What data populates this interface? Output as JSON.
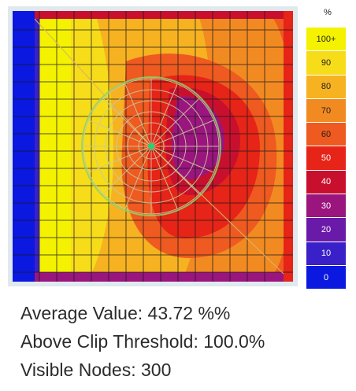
{
  "legend": {
    "unit": "%",
    "items": [
      {
        "label": "100+",
        "color": "#f4f200",
        "text_color": "#222222"
      },
      {
        "label": "90",
        "color": "#f7dc1a",
        "text_color": "#222222"
      },
      {
        "label": "80",
        "color": "#f6b221",
        "text_color": "#222222"
      },
      {
        "label": "70",
        "color": "#f28a22",
        "text_color": "#222222"
      },
      {
        "label": "60",
        "color": "#ee5a1f",
        "text_color": "#222222"
      },
      {
        "label": "50",
        "color": "#e62417",
        "text_color": "#ffffff"
      },
      {
        "label": "40",
        "color": "#c8102e",
        "text_color": "#ffffff"
      },
      {
        "label": "30",
        "color": "#9a157e",
        "text_color": "#ffffff"
      },
      {
        "label": "20",
        "color": "#6a1aa8",
        "text_color": "#ffffff"
      },
      {
        "label": "10",
        "color": "#3a20c8",
        "text_color": "#ffffff"
      },
      {
        "label": "0",
        "color": "#0a18e0",
        "text_color": "#ffffff"
      }
    ]
  },
  "stats": {
    "average_value": "Average Value: 43.72 %%",
    "above_clip_threshold": "Above Clip Threshold: 100.0%",
    "visible_nodes": "Visible Nodes: 300"
  }
}
